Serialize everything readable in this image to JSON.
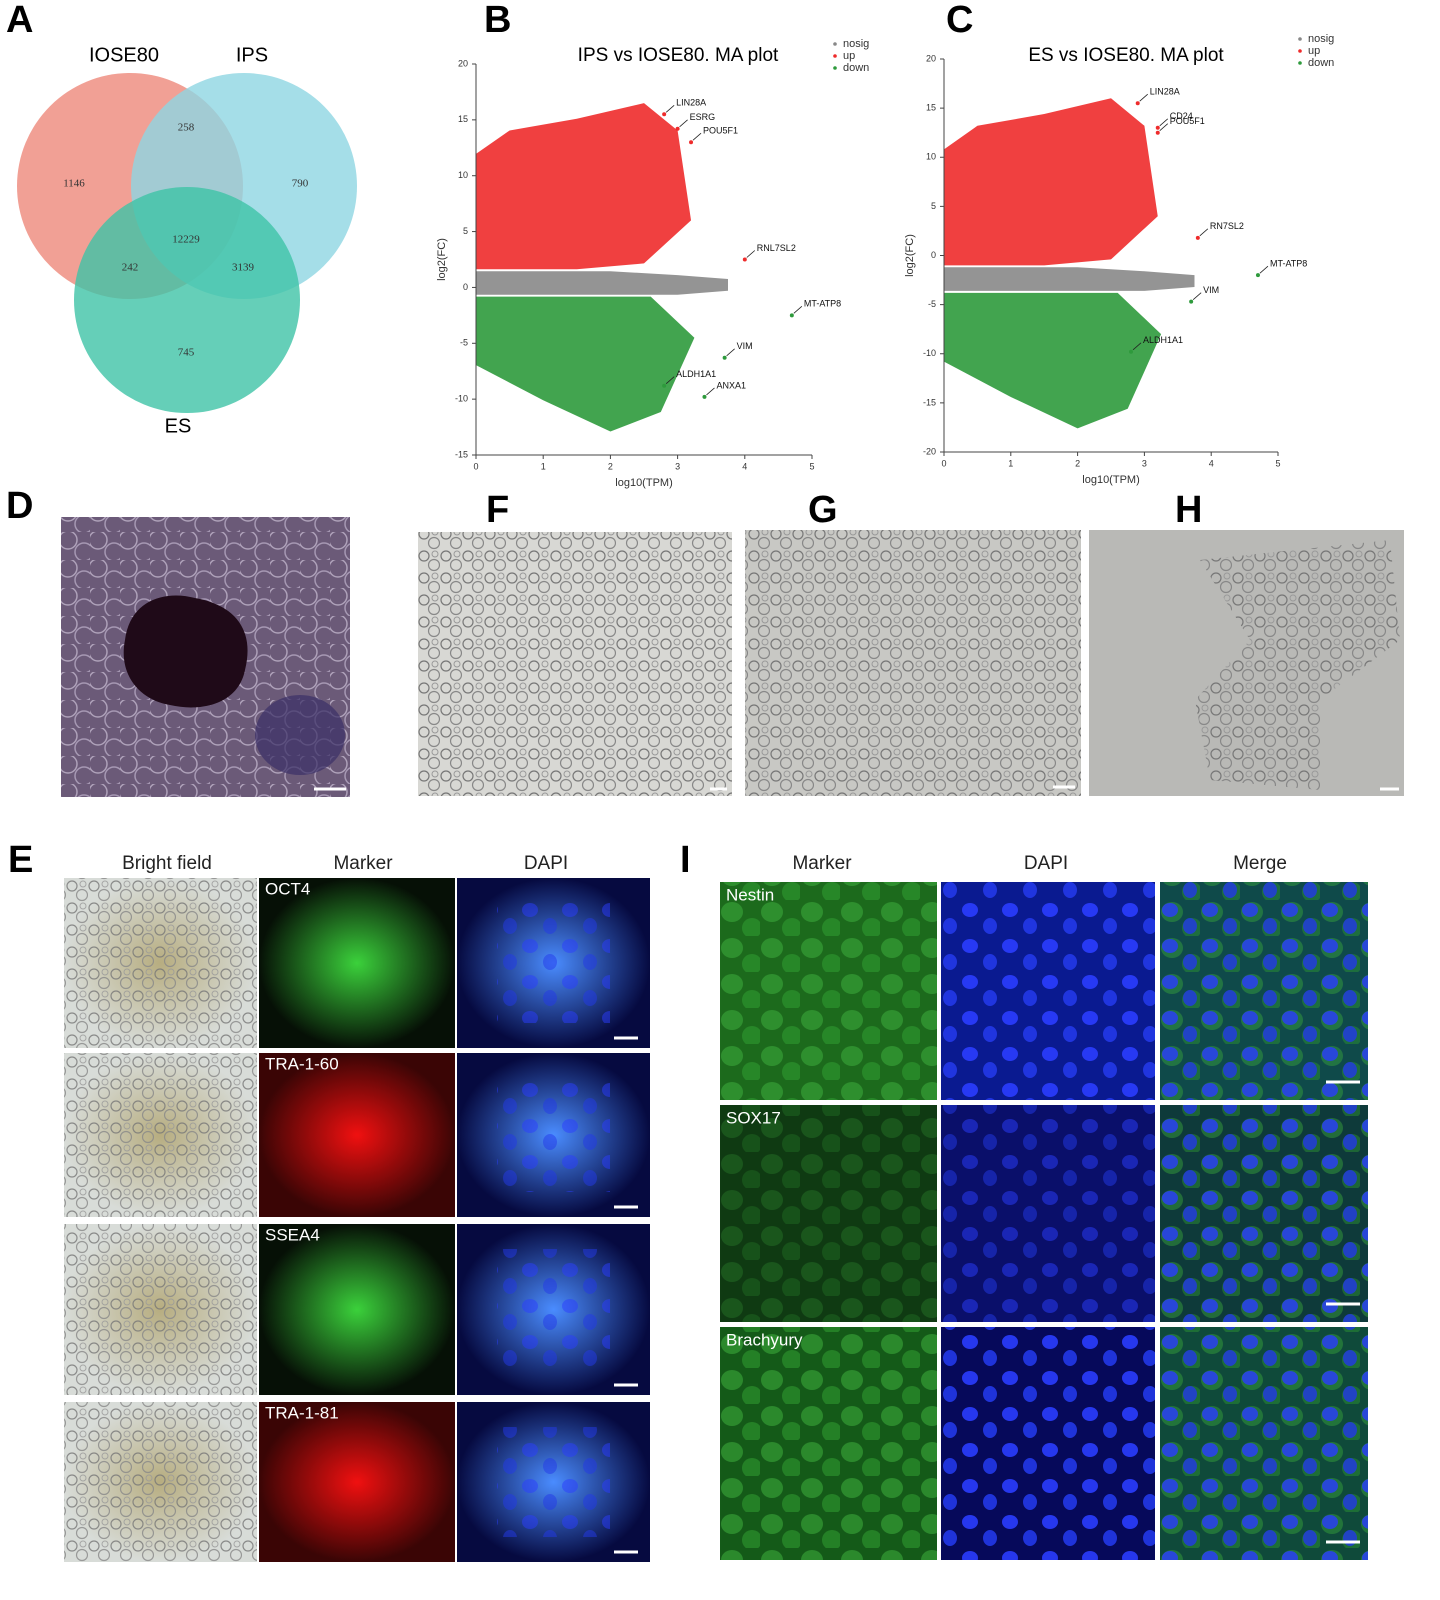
{
  "panel_labels": [
    "A",
    "B",
    "C",
    "D",
    "F",
    "G",
    "H",
    "E",
    "I"
  ],
  "venn": {
    "sets": [
      "IOSE80",
      "IPS",
      "ES"
    ],
    "counts": [
      1146,
      258,
      790,
      12229,
      242,
      3139,
      745
    ]
  },
  "ma_plots": [
    {
      "title": "IPS vs IOSE80. MA plot",
      "xlabel": "log10(TPM)",
      "ylabel": "log2(FC)",
      "legend": [
        {
          "name": "nosig",
          "color": "#888888"
        },
        {
          "name": "up",
          "color": "#ee2b2b"
        },
        {
          "name": "down",
          "color": "#2e9a3c"
        }
      ],
      "xlim": [
        0,
        5
      ],
      "ylim": [
        -15,
        20
      ],
      "xticks": [
        0,
        1,
        2,
        3,
        4,
        5
      ],
      "yticks": [
        -15,
        -10,
        -5,
        0,
        5,
        10,
        15,
        20
      ],
      "genes": [
        {
          "label": "LIN28A",
          "x": 2.8,
          "y": 15.5
        },
        {
          "label": "ESRG",
          "x": 3.0,
          "y": 14.2
        },
        {
          "label": "POU5F1",
          "x": 3.2,
          "y": 13
        },
        {
          "label": "RNL7SL2",
          "x": 4.0,
          "y": 2.5
        },
        {
          "label": "MT-ATP8",
          "x": 4.7,
          "y": -2.5
        },
        {
          "label": "VIM",
          "x": 3.7,
          "y": -6.3
        },
        {
          "label": "ANXA1",
          "x": 3.4,
          "y": -9.8
        },
        {
          "label": "ALDH1A1",
          "x": 2.8,
          "y": -8.8
        }
      ]
    },
    {
      "title": "ES vs   IOSE80. MA plot",
      "xlabel": "log10(TPM)",
      "ylabel": "log2(FC)",
      "legend": [
        {
          "name": "nosig",
          "color": "#888888"
        },
        {
          "name": "up",
          "color": "#ee2b2b"
        },
        {
          "name": "down",
          "color": "#2e9a3c"
        }
      ],
      "xlim": [
        0,
        5
      ],
      "ylim": [
        -20,
        20
      ],
      "xticks": [
        0,
        1,
        2,
        3,
        4,
        5
      ],
      "yticks": [
        -20,
        -15,
        -10,
        -5,
        0,
        5,
        10,
        15,
        20
      ],
      "genes": [
        {
          "label": "LIN28A",
          "x": 2.9,
          "y": 15.5
        },
        {
          "label": "CD24",
          "x": 3.2,
          "y": 13
        },
        {
          "label": "POU5F1",
          "x": 3.2,
          "y": 12.5
        },
        {
          "label": "RN7SL2",
          "x": 3.8,
          "y": 1.8
        },
        {
          "label": "MT-ATP8",
          "x": 4.7,
          "y": -2
        },
        {
          "label": "VIM",
          "x": 3.7,
          "y": -4.7
        },
        {
          "label": "ALDH1A1",
          "x": 2.8,
          "y": -9.8
        }
      ]
    }
  ],
  "panel_e": {
    "columns": [
      "Bright field",
      "Marker",
      "DAPI"
    ],
    "markers": [
      "OCT4",
      "TRA-1-60",
      "SSEA4",
      "TRA-1-81"
    ]
  },
  "panel_i": {
    "columns": [
      "Marker",
      "DAPI",
      "Merge"
    ],
    "markers": [
      "Nestin",
      "SOX17",
      "Brachyury"
    ]
  }
}
